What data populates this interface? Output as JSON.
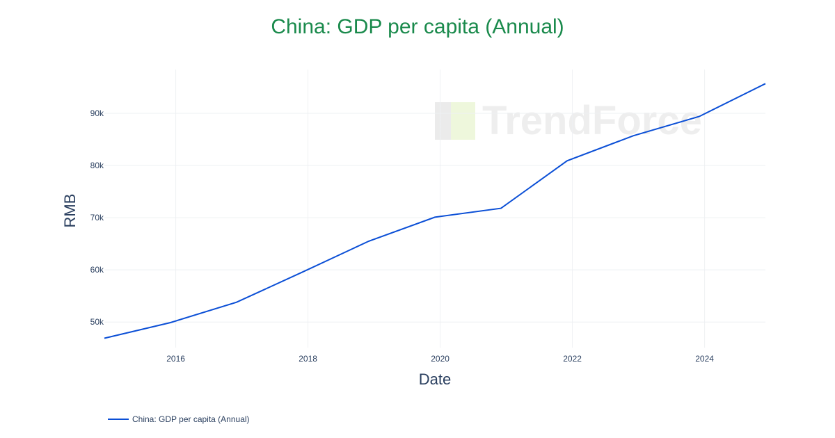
{
  "chart_data": {
    "type": "line",
    "title": "China: GDP per capita (Annual)",
    "xlabel": "Date",
    "ylabel": "RMB",
    "x": [
      2014.92,
      2015.92,
      2016.92,
      2017.92,
      2018.92,
      2019.92,
      2020.92,
      2021.92,
      2022.92,
      2023.92,
      2024.92
    ],
    "series": [
      {
        "name": "China: GDP per capita (Annual)",
        "color": "#0b4fd6",
        "values": [
          46900,
          49900,
          53800,
          59600,
          65500,
          70100,
          71800,
          80900,
          85700,
          89400,
          95700
        ]
      }
    ],
    "xlim": [
      2014.92,
      2024.92
    ],
    "ylim": [
      45100,
      98400
    ],
    "xticks": [
      {
        "v": 2016,
        "label": "2016"
      },
      {
        "v": 2018,
        "label": "2018"
      },
      {
        "v": 2020,
        "label": "2020"
      },
      {
        "v": 2022,
        "label": "2022"
      },
      {
        "v": 2024,
        "label": "2024"
      }
    ],
    "yticks": [
      {
        "v": 50000,
        "label": "50k"
      },
      {
        "v": 60000,
        "label": "60k"
      },
      {
        "v": 70000,
        "label": "70k"
      },
      {
        "v": 80000,
        "label": "80k"
      },
      {
        "v": 90000,
        "label": "90k"
      }
    ],
    "grid": true,
    "legend_position": "bottom-left"
  },
  "watermark": "TrendForce"
}
